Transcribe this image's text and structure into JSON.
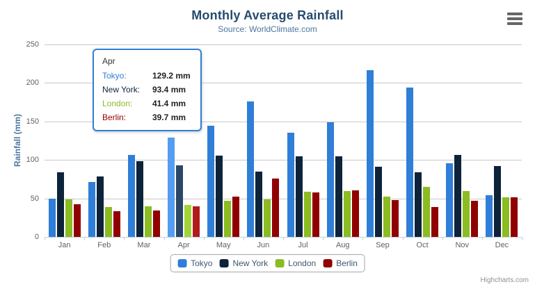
{
  "chart_data": {
    "type": "bar",
    "title": "Monthly Average Rainfall",
    "subtitle": "Source: WorldClimate.com",
    "xlabel": "",
    "ylabel": "Rainfall (mm)",
    "ylim": [
      0,
      250
    ],
    "yticks": [
      0,
      50,
      100,
      150,
      200,
      250
    ],
    "grid": true,
    "legend_position": "bottom",
    "categories": [
      "Jan",
      "Feb",
      "Mar",
      "Apr",
      "May",
      "Jun",
      "Jul",
      "Aug",
      "Sep",
      "Oct",
      "Nov",
      "Dec"
    ],
    "series": [
      {
        "name": "Tokyo",
        "color": "#2f7ed8",
        "hover_color": "#549df2",
        "values": [
          49.9,
          71.5,
          106.4,
          129.2,
          144.0,
          176.0,
          135.6,
          148.5,
          216.4,
          194.1,
          95.6,
          54.4
        ]
      },
      {
        "name": "New York",
        "color": "#0d233a",
        "hover_color": "#2a4765",
        "values": [
          83.6,
          78.8,
          98.5,
          93.4,
          106.0,
          84.5,
          105.0,
          104.3,
          91.2,
          83.5,
          106.6,
          92.3
        ]
      },
      {
        "name": "London",
        "color": "#8bbc21",
        "hover_color": "#a2d437",
        "values": [
          48.9,
          38.8,
          39.3,
          41.4,
          47.0,
          48.3,
          59.0,
          59.6,
          52.4,
          65.2,
          59.3,
          51.2
        ]
      },
      {
        "name": "Berlin",
        "color": "#910000",
        "hover_color": "#b01c1c",
        "values": [
          42.4,
          33.2,
          34.5,
          39.7,
          52.6,
          75.5,
          57.4,
          60.4,
          47.6,
          39.1,
          46.8,
          51.1
        ]
      }
    ],
    "hovered_category": "Apr",
    "hovered_category_index": 3
  },
  "tooltip": {
    "header": "Apr",
    "border_color": "#2f7ed8",
    "rows": [
      {
        "label": "Tokyo:",
        "value": "129.2 mm",
        "color": "#2f7ed8"
      },
      {
        "label": "New York:",
        "value": "93.4 mm",
        "color": "#0d233a"
      },
      {
        "label": "London:",
        "value": "41.4 mm",
        "color": "#8bbc21"
      },
      {
        "label": "Berlin:",
        "value": "39.7 mm",
        "color": "#910000"
      }
    ]
  },
  "credits": {
    "label": "Highcharts.com"
  }
}
